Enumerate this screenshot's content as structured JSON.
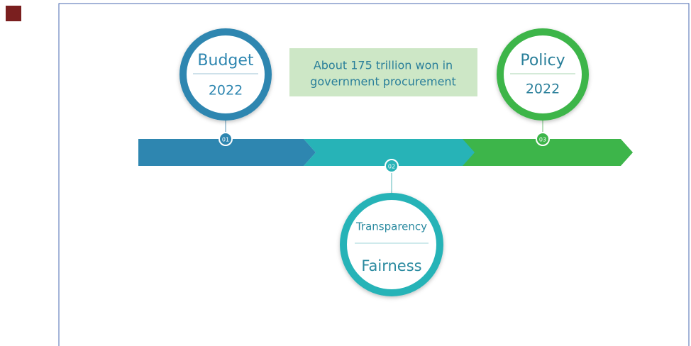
{
  "note": {
    "lines": [
      "About 175 trillion won in",
      "government procurement"
    ]
  },
  "nodes": [
    {
      "step": "01",
      "top": "Budget",
      "bottom": "2022"
    },
    {
      "step": "02",
      "top": "Transparency",
      "bottom": "Fairness"
    },
    {
      "step": "03",
      "top": "Policy",
      "bottom": "2022"
    }
  ]
}
